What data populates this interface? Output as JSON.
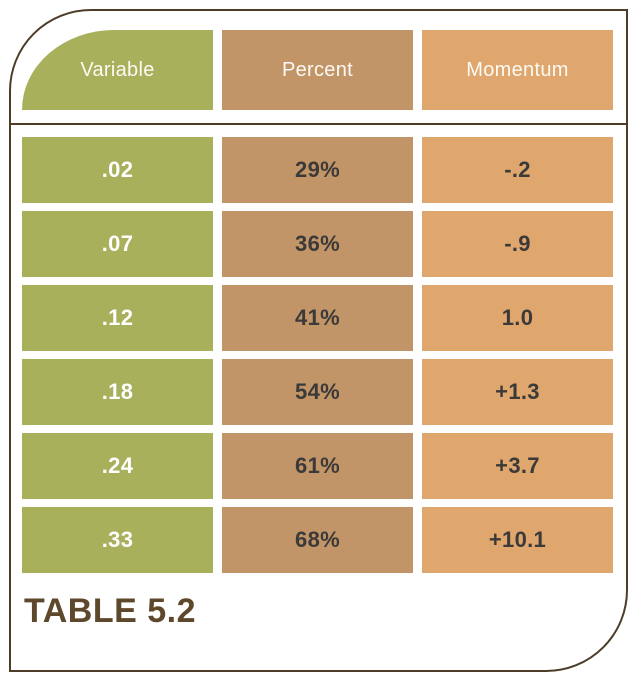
{
  "chart_data": {
    "type": "table",
    "title": "TABLE 5.2",
    "columns": [
      "Variable",
      "Percent",
      "Momentum"
    ],
    "rows": [
      [
        ".02",
        "29%",
        "-.2"
      ],
      [
        ".07",
        "36%",
        "-.9"
      ],
      [
        ".12",
        "41%",
        "1.0"
      ],
      [
        ".18",
        "54%",
        "+1.3"
      ],
      [
        ".24",
        "61%",
        "+3.7"
      ],
      [
        ".33",
        "68%",
        "+10.1"
      ]
    ]
  },
  "table": {
    "caption": "TABLE 5.2",
    "headers": {
      "variable": "Variable",
      "percent": "Percent",
      "momentum": "Momentum"
    },
    "rows": [
      {
        "variable": ".02",
        "percent": "29%",
        "momentum": "-.2"
      },
      {
        "variable": ".07",
        "percent": "36%",
        "momentum": "-.9"
      },
      {
        "variable": ".12",
        "percent": "41%",
        "momentum": "1.0"
      },
      {
        "variable": ".18",
        "percent": "54%",
        "momentum": "+1.3"
      },
      {
        "variable": ".24",
        "percent": "61%",
        "momentum": "+3.7"
      },
      {
        "variable": ".33",
        "percent": "68%",
        "momentum": "+10.1"
      }
    ]
  },
  "colors": {
    "variable_green": "#a8b05c",
    "percent_tan": "#c29568",
    "momentum_orange": "#dfa66e",
    "frame_border": "#4d3d28",
    "caption_brown": "#5e482c",
    "cell_text_dark": "#3b3a38",
    "header_text": "#fcfaf3"
  }
}
